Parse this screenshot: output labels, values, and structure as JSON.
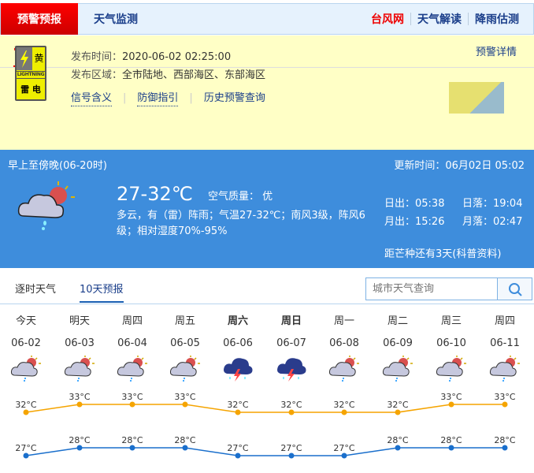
{
  "topnav": {
    "active": "预警预报",
    "tab": "天气监测",
    "right": [
      "台风网",
      "天气解读",
      "降雨估测"
    ]
  },
  "warning": {
    "tab": "雷电",
    "detail_link": "预警详情",
    "signal": {
      "level": "黄",
      "en": "LIGHTNING",
      "cn": "雷 电",
      "color": "#eeee00"
    },
    "time_label": "发布时间：",
    "time": "2020-06-02 02:25:00",
    "area_label": "发布区域：",
    "area": "全市陆地、西部海区、东部海区",
    "links": [
      "信号含义",
      "防御指引",
      "历史预警查询"
    ]
  },
  "today": {
    "period": "早上至傍晚(06-20时)",
    "update": "更新时间：06月02日 05:02",
    "temp": "27-32℃",
    "aqi": "空气质量： 优",
    "desc": "多云，有（雷）阵雨；气温27-32℃；南风3级，阵风6级；相对湿度70%-95%",
    "sunrise": "日出：05:38",
    "sunset": "日落：19:04",
    "moonrise": "月出：15:26",
    "moonset": "月落：02:47",
    "solar_term": "距芒种还有3天(科普资料)"
  },
  "forecast_tabs": [
    "逐时天气",
    "10天预报"
  ],
  "search": {
    "placeholder": "城市天气查询"
  },
  "days": [
    {
      "w": "今天",
      "d": "06-02",
      "icon": "cloudy-shower"
    },
    {
      "w": "明天",
      "d": "06-03",
      "icon": "cloudy-shower"
    },
    {
      "w": "周四",
      "d": "06-04",
      "icon": "cloudy-shower"
    },
    {
      "w": "周五",
      "d": "06-05",
      "icon": "cloudy-shower"
    },
    {
      "w": "周六",
      "d": "06-06",
      "icon": "thunderstorm",
      "bold": true
    },
    {
      "w": "周日",
      "d": "06-07",
      "icon": "thunderstorm",
      "bold": true
    },
    {
      "w": "周一",
      "d": "06-08",
      "icon": "cloudy-shower"
    },
    {
      "w": "周二",
      "d": "06-09",
      "icon": "cloudy-shower"
    },
    {
      "w": "周三",
      "d": "06-10",
      "icon": "cloudy-shower"
    },
    {
      "w": "周四",
      "d": "06-11",
      "icon": "cloudy-shower"
    }
  ],
  "chart_data": {
    "type": "line",
    "categories": [
      "06-02",
      "06-03",
      "06-04",
      "06-05",
      "06-06",
      "06-07",
      "06-08",
      "06-09",
      "06-10",
      "06-11"
    ],
    "unit": "°C",
    "series": [
      {
        "values": [
          32,
          33,
          33,
          33,
          32,
          32,
          32,
          32,
          33,
          33
        ],
        "color": "#f5a400"
      },
      {
        "values": [
          27,
          28,
          28,
          28,
          27,
          27,
          27,
          28,
          28,
          28
        ],
        "color": "#1a6fcc"
      }
    ]
  }
}
